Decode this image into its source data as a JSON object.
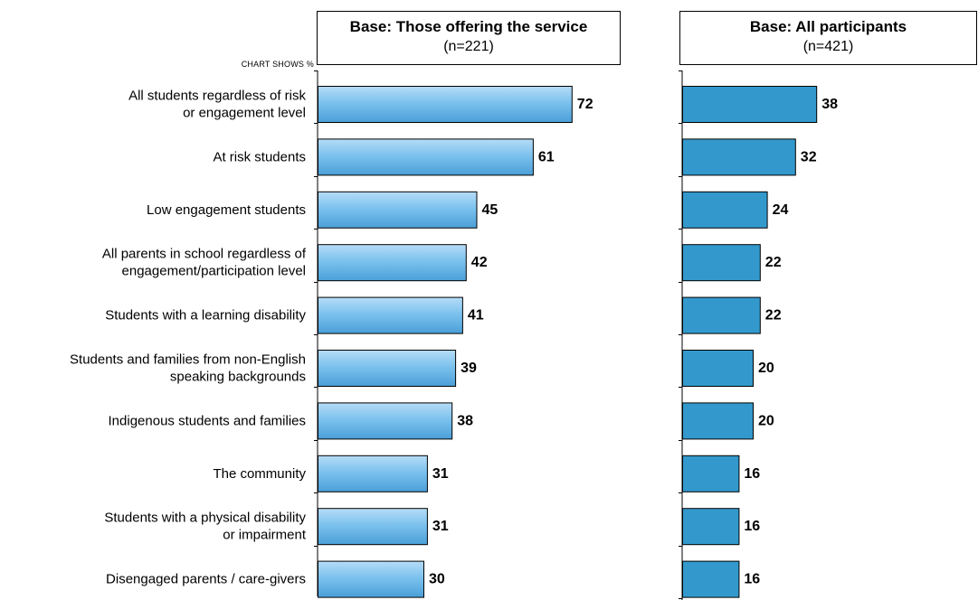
{
  "chart_note": "CHART SHOWS %",
  "chart_data": [
    {
      "type": "bar",
      "orientation": "horizontal",
      "title": "Base: Those offering the service",
      "subtitle": "(n=221)",
      "categories": [
        [
          "All students regardless of risk",
          "or engagement level"
        ],
        [
          "At risk students"
        ],
        [
          "Low engagement students"
        ],
        [
          "All parents in school regardless of",
          "engagement/participation level"
        ],
        [
          "Students with a learning disability"
        ],
        [
          "Students and families from non-English",
          "speaking backgrounds"
        ],
        [
          "Indigenous students and families"
        ],
        [
          "The community"
        ],
        [
          "Students with a physical disability",
          "or impairment"
        ],
        [
          "Disengaged parents / care-givers"
        ]
      ],
      "values": [
        72,
        61,
        45,
        42,
        41,
        39,
        38,
        31,
        31,
        30
      ],
      "xlim": [
        0,
        100
      ],
      "grid": false,
      "bar_color": "#7cc2ee"
    },
    {
      "type": "bar",
      "orientation": "horizontal",
      "title": "Base: All participants",
      "subtitle": "(n=421)",
      "values": [
        38,
        32,
        24,
        22,
        22,
        20,
        20,
        16,
        16,
        16
      ],
      "xlim": [
        0,
        100
      ],
      "grid": false,
      "bar_color": "#3399cc"
    }
  ]
}
